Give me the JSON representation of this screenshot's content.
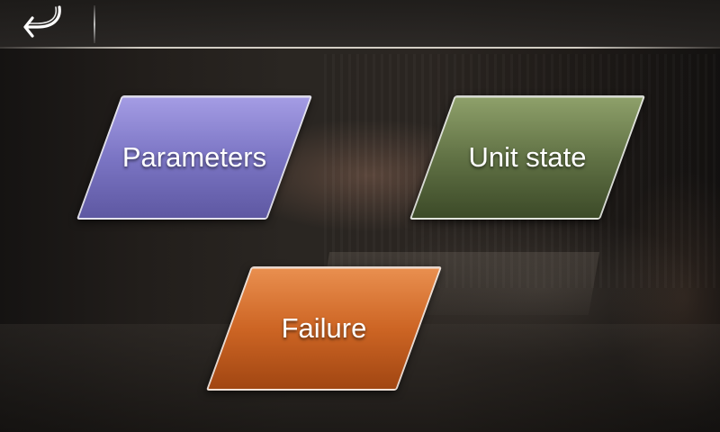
{
  "header": {
    "back_icon": "back-arrow-icon"
  },
  "menu": {
    "parameters_label": "Parameters",
    "unit_state_label": "Unit state",
    "failure_label": "Failure"
  },
  "colors": {
    "parameters": "#8a83d2",
    "unit_state": "#6b7c4d",
    "failure": "#d56a2a"
  }
}
